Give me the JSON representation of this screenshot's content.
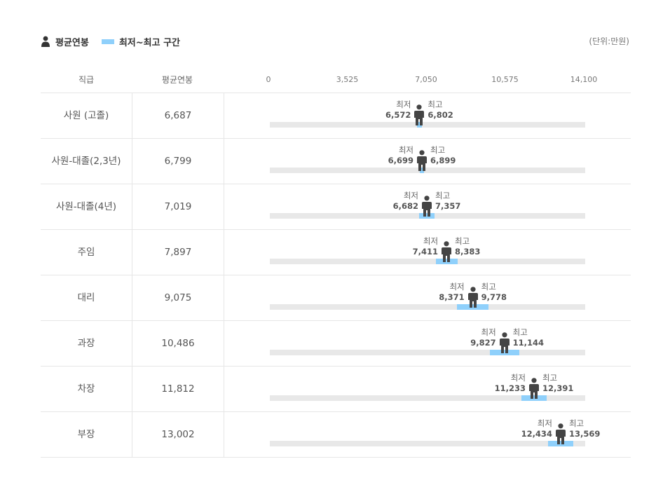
{
  "legend": {
    "avg_label": "평균연봉",
    "range_label": "최저~최고 구간"
  },
  "unit_label": "(단위:만원)",
  "header": {
    "col1": "직급",
    "col2": "평균연봉"
  },
  "axis": {
    "ticks": [
      "0",
      "3,525",
      "7,050",
      "10,575",
      "14,100"
    ],
    "tick_values": [
      0,
      3525,
      7050,
      10575,
      14100
    ]
  },
  "min_label": "최저",
  "max_label": "최고",
  "colors": {
    "range": "#8fd0fb",
    "track": "#e8e8e8",
    "figure": "#444444"
  },
  "chart_data": {
    "type": "range",
    "xlim": [
      0,
      14100
    ],
    "rows": [
      {
        "grade": "사원 (고졸)",
        "avg": 6687,
        "avg_text": "6,687",
        "min": 6572,
        "min_text": "6,572",
        "max": 6802,
        "max_text": "6,802"
      },
      {
        "grade": "사원-대졸(2,3년)",
        "avg": 6799,
        "avg_text": "6,799",
        "min": 6699,
        "min_text": "6,699",
        "max": 6899,
        "max_text": "6,899"
      },
      {
        "grade": "사원-대졸(4년)",
        "avg": 7019,
        "avg_text": "7,019",
        "min": 6682,
        "min_text": "6,682",
        "max": 7357,
        "max_text": "7,357"
      },
      {
        "grade": "주임",
        "avg": 7897,
        "avg_text": "7,897",
        "min": 7411,
        "min_text": "7,411",
        "max": 8383,
        "max_text": "8,383"
      },
      {
        "grade": "대리",
        "avg": 9075,
        "avg_text": "9,075",
        "min": 8371,
        "min_text": "8,371",
        "max": 9778,
        "max_text": "9,778"
      },
      {
        "grade": "과장",
        "avg": 10486,
        "avg_text": "10,486",
        "min": 9827,
        "min_text": "9,827",
        "max": 11144,
        "max_text": "11,144"
      },
      {
        "grade": "차장",
        "avg": 11812,
        "avg_text": "11,812",
        "min": 11233,
        "min_text": "11,233",
        "max": 12391,
        "max_text": "12,391"
      },
      {
        "grade": "부장",
        "avg": 13002,
        "avg_text": "13,002",
        "min": 12434,
        "min_text": "12,434",
        "max": 13569,
        "max_text": "13,569"
      }
    ]
  }
}
